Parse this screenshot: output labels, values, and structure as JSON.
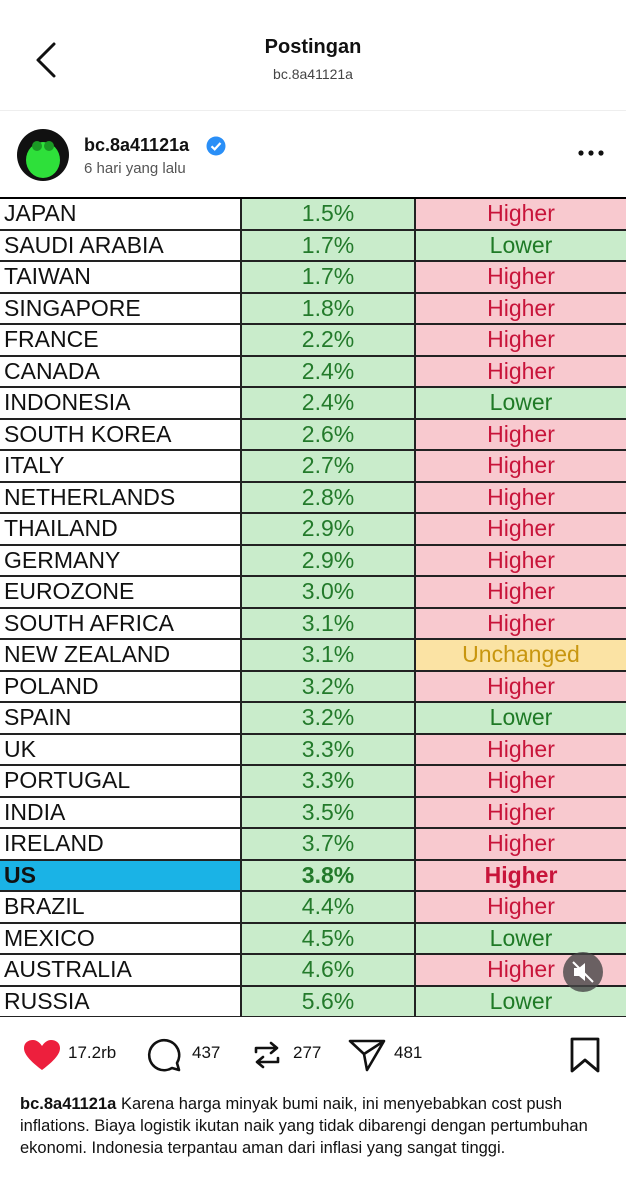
{
  "header": {
    "title": "Postingan",
    "subtitle": "bc.8a41121a"
  },
  "post": {
    "username": "bc.8a41121a",
    "time": "6 hari yang lalu"
  },
  "table": {
    "rows": [
      {
        "country": "JAPAN",
        "rate": "1.5%",
        "status": "Higher",
        "status_color": "#f8c9cf"
      },
      {
        "country": "SAUDI ARABIA",
        "rate": "1.7%",
        "status": "Lower",
        "status_color": "#c9eccb"
      },
      {
        "country": "TAIWAN",
        "rate": "1.7%",
        "status": "Higher",
        "status_color": "#f8c9cf"
      },
      {
        "country": "SINGAPORE",
        "rate": "1.8%",
        "status": "Higher",
        "status_color": "#f8c9cf"
      },
      {
        "country": "FRANCE",
        "rate": "2.2%",
        "status": "Higher",
        "status_color": "#f8c9cf"
      },
      {
        "country": "CANADA",
        "rate": "2.4%",
        "status": "Higher",
        "status_color": "#f8c9cf"
      },
      {
        "country": "INDONESIA",
        "rate": "2.4%",
        "status": "Lower",
        "status_color": "#c9eccb"
      },
      {
        "country": "SOUTH KOREA",
        "rate": "2.6%",
        "status": "Higher",
        "status_color": "#f8c9cf"
      },
      {
        "country": "ITALY",
        "rate": "2.7%",
        "status": "Higher",
        "status_color": "#f8c9cf"
      },
      {
        "country": "NETHERLANDS",
        "rate": "2.8%",
        "status": "Higher",
        "status_color": "#f8c9cf"
      },
      {
        "country": "THAILAND",
        "rate": "2.9%",
        "status": "Higher",
        "status_color": "#f8c9cf"
      },
      {
        "country": "GERMANY",
        "rate": "2.9%",
        "status": "Higher",
        "status_color": "#f8c9cf"
      },
      {
        "country": "EUROZONE",
        "rate": "3.0%",
        "status": "Higher",
        "status_color": "#f8c9cf"
      },
      {
        "country": "SOUTH AFRICA",
        "rate": "3.1%",
        "status": "Higher",
        "status_color": "#f8c9cf"
      },
      {
        "country": "NEW ZEALAND",
        "rate": "3.1%",
        "status": "Unchanged",
        "status_color": "#fbe3a4"
      },
      {
        "country": "POLAND",
        "rate": "3.2%",
        "status": "Higher",
        "status_color": "#f8c9cf"
      },
      {
        "country": "SPAIN",
        "rate": "3.2%",
        "status": "Lower",
        "status_color": "#c9eccb"
      },
      {
        "country": "UK",
        "rate": "3.3%",
        "status": "Higher",
        "status_color": "#f8c9cf"
      },
      {
        "country": "PORTUGAL",
        "rate": "3.3%",
        "status": "Higher",
        "status_color": "#f8c9cf"
      },
      {
        "country": "INDIA",
        "rate": "3.5%",
        "status": "Higher",
        "status_color": "#f8c9cf"
      },
      {
        "country": "IRELAND",
        "rate": "3.7%",
        "status": "Higher",
        "status_color": "#f8c9cf"
      },
      {
        "country": "US",
        "rate": "3.8%",
        "status": "Higher",
        "status_color": "#f8c9cf",
        "country_color": "#1ab3e6",
        "bold": true
      },
      {
        "country": "BRAZIL",
        "rate": "4.4%",
        "status": "Higher",
        "status_color": "#f8c9cf"
      },
      {
        "country": "MEXICO",
        "rate": "4.5%",
        "status": "Lower",
        "status_color": "#c9eccb"
      },
      {
        "country": "AUSTRALIA",
        "rate": "4.6%",
        "status": "Higher",
        "status_color": "#f8c9cf"
      },
      {
        "country": "RUSSIA",
        "rate": "5.6%",
        "status": "Lower",
        "status_color": "#c9eccb"
      }
    ]
  },
  "actions": {
    "likes": "17.2rb",
    "comments": "437",
    "reposts": "277",
    "shares": "481"
  },
  "caption": {
    "username": "bc.8a41121a",
    "text": "Karena harga minyak bumi naik, ini menyebabkan cost push inflations. Biaya logistik ikutan naik yang tidak dibarengi dengan pertumbuhan ekonomi. Indonesia terpantau aman dari inflasi yang sangat tinggi."
  }
}
